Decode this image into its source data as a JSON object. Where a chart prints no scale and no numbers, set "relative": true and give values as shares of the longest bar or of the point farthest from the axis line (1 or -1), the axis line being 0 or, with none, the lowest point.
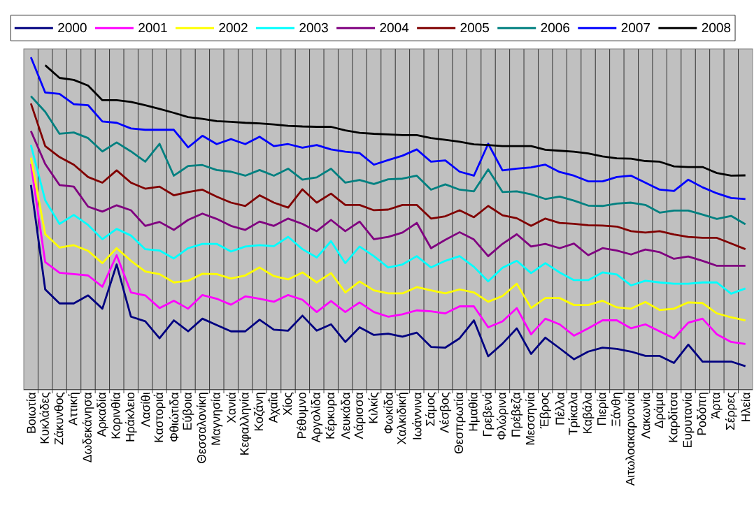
{
  "chart_data": {
    "type": "line",
    "relative": true,
    "legend": "top",
    "grid": "x",
    "line_style": "solid",
    "categories": [
      "Βοιωτία",
      "Κυκλάδες",
      "Ζάκυνθος",
      "Αττική",
      "Δωδεκάνησα",
      "Αρκαδία",
      "Κορινθία",
      "Ηράκλειο",
      "Λασίθι",
      "Καστοριά",
      "Φθιώτιδα",
      "Εύβοια",
      "Θεσσαλονίκη",
      "Μαγνησία",
      "Χανιά",
      "Κεφαλληνία",
      "Κοζάνη",
      "Αχαΐα",
      "Χίος",
      "Ρέθυμνο",
      "Αργολίδα",
      "Κέρκυρα",
      "Λευκάδα",
      "Λάρισσα",
      "Κιλκίς",
      "Φωκίδα",
      "Χαλκιδική",
      "Ιωάννινα",
      "Σάμος",
      "Λέσβος",
      "Θεσπρωτία",
      "Ημαθία",
      "Γρεβενά",
      "Φλώρινα",
      "Πρέβεζα",
      "Μεσσηνία",
      "Έβρος",
      "Πέλλα",
      "Τρίκαλα",
      "Καβάλα",
      "Πιερία",
      "Ξάνθη",
      "Αιτωλοακαρνανία",
      "Λακωνία",
      "Δράμα",
      "Καρδίτσα",
      "Ευρυτανία",
      "Ροδόπη",
      "Άρτα",
      "Σέρρες",
      "Ηλεία"
    ],
    "series": [
      {
        "name": "2000",
        "color": "#000080",
        "values": [
          0.616,
          0.302,
          0.26,
          0.26,
          0.284,
          0.244,
          0.377,
          0.22,
          0.206,
          0.155,
          0.209,
          0.176,
          0.214,
          0.195,
          0.176,
          0.176,
          0.211,
          0.181,
          0.178,
          0.223,
          0.178,
          0.197,
          0.144,
          0.188,
          0.165,
          0.169,
          0.16,
          0.172,
          0.129,
          0.127,
          0.155,
          0.209,
          0.101,
          0.139,
          0.185,
          0.108,
          0.157,
          0.125,
          0.092,
          0.115,
          0.127,
          0.123,
          0.115,
          0.102,
          0.102,
          0.081,
          0.136,
          0.085,
          0.085,
          0.085,
          0.071
        ]
      },
      {
        "name": "2001",
        "color": "#ff00ff",
        "values": [
          0.679,
          0.384,
          0.352,
          0.348,
          0.344,
          0.31,
          0.405,
          0.293,
          0.284,
          0.246,
          0.268,
          0.244,
          0.285,
          0.274,
          0.256,
          0.281,
          0.274,
          0.265,
          0.285,
          0.271,
          0.234,
          0.267,
          0.234,
          0.263,
          0.234,
          0.22,
          0.227,
          0.239,
          0.236,
          0.23,
          0.251,
          0.251,
          0.188,
          0.206,
          0.246,
          0.167,
          0.214,
          0.197,
          0.163,
          0.185,
          0.209,
          0.209,
          0.185,
          0.197,
          0.176,
          0.155,
          0.202,
          0.214,
          0.167,
          0.144,
          0.138
        ]
      },
      {
        "name": "2002",
        "color": "#ffff00",
        "values": [
          0.698,
          0.468,
          0.428,
          0.435,
          0.418,
          0.381,
          0.426,
          0.388,
          0.356,
          0.348,
          0.323,
          0.328,
          0.349,
          0.348,
          0.335,
          0.344,
          0.368,
          0.342,
          0.332,
          0.353,
          0.323,
          0.351,
          0.293,
          0.326,
          0.299,
          0.29,
          0.29,
          0.309,
          0.299,
          0.29,
          0.302,
          0.293,
          0.265,
          0.282,
          0.319,
          0.246,
          0.276,
          0.276,
          0.255,
          0.255,
          0.268,
          0.248,
          0.244,
          0.264,
          0.24,
          0.244,
          0.263,
          0.261,
          0.23,
          0.218,
          0.209
        ]
      },
      {
        "name": "2003",
        "color": "#00ffff",
        "values": [
          0.736,
          0.57,
          0.499,
          0.526,
          0.496,
          0.453,
          0.484,
          0.464,
          0.423,
          0.419,
          0.395,
          0.426,
          0.439,
          0.439,
          0.416,
          0.431,
          0.435,
          0.432,
          0.46,
          0.423,
          0.398,
          0.447,
          0.381,
          0.431,
          0.402,
          0.368,
          0.377,
          0.402,
          0.368,
          0.388,
          0.402,
          0.37,
          0.326,
          0.367,
          0.388,
          0.351,
          0.381,
          0.353,
          0.33,
          0.33,
          0.353,
          0.347,
          0.314,
          0.328,
          0.323,
          0.319,
          0.319,
          0.323,
          0.323,
          0.289,
          0.305
        ]
      },
      {
        "name": "2004",
        "color": "#800080",
        "values": [
          0.778,
          0.679,
          0.616,
          0.611,
          0.551,
          0.536,
          0.555,
          0.54,
          0.493,
          0.505,
          0.481,
          0.511,
          0.53,
          0.514,
          0.493,
          0.481,
          0.506,
          0.493,
          0.515,
          0.499,
          0.477,
          0.511,
          0.477,
          0.506,
          0.453,
          0.46,
          0.473,
          0.502,
          0.426,
          0.451,
          0.474,
          0.452,
          0.402,
          0.439,
          0.468,
          0.431,
          0.439,
          0.426,
          0.44,
          0.405,
          0.426,
          0.419,
          0.407,
          0.422,
          0.414,
          0.394,
          0.401,
          0.388,
          0.373,
          0.373,
          0.373
        ]
      },
      {
        "name": "2005",
        "color": "#800000",
        "values": [
          0.861,
          0.733,
          0.7,
          0.677,
          0.64,
          0.623,
          0.66,
          0.623,
          0.605,
          0.611,
          0.585,
          0.595,
          0.602,
          0.581,
          0.563,
          0.553,
          0.585,
          0.563,
          0.548,
          0.603,
          0.563,
          0.59,
          0.556,
          0.556,
          0.54,
          0.542,
          0.556,
          0.556,
          0.515,
          0.522,
          0.54,
          0.519,
          0.553,
          0.525,
          0.516,
          0.493,
          0.515,
          0.502,
          0.499,
          0.495,
          0.494,
          0.491,
          0.477,
          0.473,
          0.477,
          0.467,
          0.46,
          0.457,
          0.457,
          0.44,
          0.423
        ]
      },
      {
        "name": "2006",
        "color": "#008080",
        "values": [
          0.883,
          0.836,
          0.77,
          0.774,
          0.757,
          0.717,
          0.744,
          0.717,
          0.686,
          0.74,
          0.644,
          0.673,
          0.676,
          0.661,
          0.656,
          0.644,
          0.661,
          0.644,
          0.665,
          0.632,
          0.639,
          0.665,
          0.623,
          0.631,
          0.619,
          0.633,
          0.635,
          0.644,
          0.602,
          0.618,
          0.602,
          0.597,
          0.663,
          0.595,
          0.597,
          0.588,
          0.574,
          0.581,
          0.569,
          0.554,
          0.553,
          0.56,
          0.563,
          0.556,
          0.533,
          0.539,
          0.539,
          0.527,
          0.514,
          0.523,
          0.498
        ]
      },
      {
        "name": "2007",
        "color": "#0000ff",
        "values": [
          1.0,
          0.894,
          0.89,
          0.859,
          0.856,
          0.807,
          0.803,
          0.786,
          0.782,
          0.782,
          0.782,
          0.729,
          0.764,
          0.739,
          0.754,
          0.739,
          0.761,
          0.733,
          0.739,
          0.728,
          0.736,
          0.723,
          0.716,
          0.712,
          0.677,
          0.691,
          0.704,
          0.723,
          0.686,
          0.69,
          0.656,
          0.644,
          0.74,
          0.66,
          0.665,
          0.669,
          0.677,
          0.655,
          0.644,
          0.627,
          0.627,
          0.64,
          0.644,
          0.623,
          0.602,
          0.598,
          0.632,
          0.609,
          0.591,
          0.577,
          0.574
        ]
      },
      {
        "name": "2008",
        "color": "#000000",
        "values": [
          null,
          0.976,
          0.938,
          0.932,
          0.915,
          0.871,
          0.871,
          0.866,
          0.856,
          0.845,
          0.833,
          0.82,
          0.815,
          0.808,
          0.806,
          0.803,
          0.801,
          0.798,
          0.794,
          0.792,
          0.791,
          0.791,
          0.78,
          0.773,
          0.77,
          0.768,
          0.766,
          0.766,
          0.757,
          0.752,
          0.746,
          0.738,
          0.736,
          0.733,
          0.733,
          0.733,
          0.722,
          0.719,
          0.716,
          0.711,
          0.702,
          0.696,
          0.695,
          0.688,
          0.686,
          0.672,
          0.67,
          0.67,
          0.652,
          0.644,
          0.645
        ]
      }
    ]
  }
}
